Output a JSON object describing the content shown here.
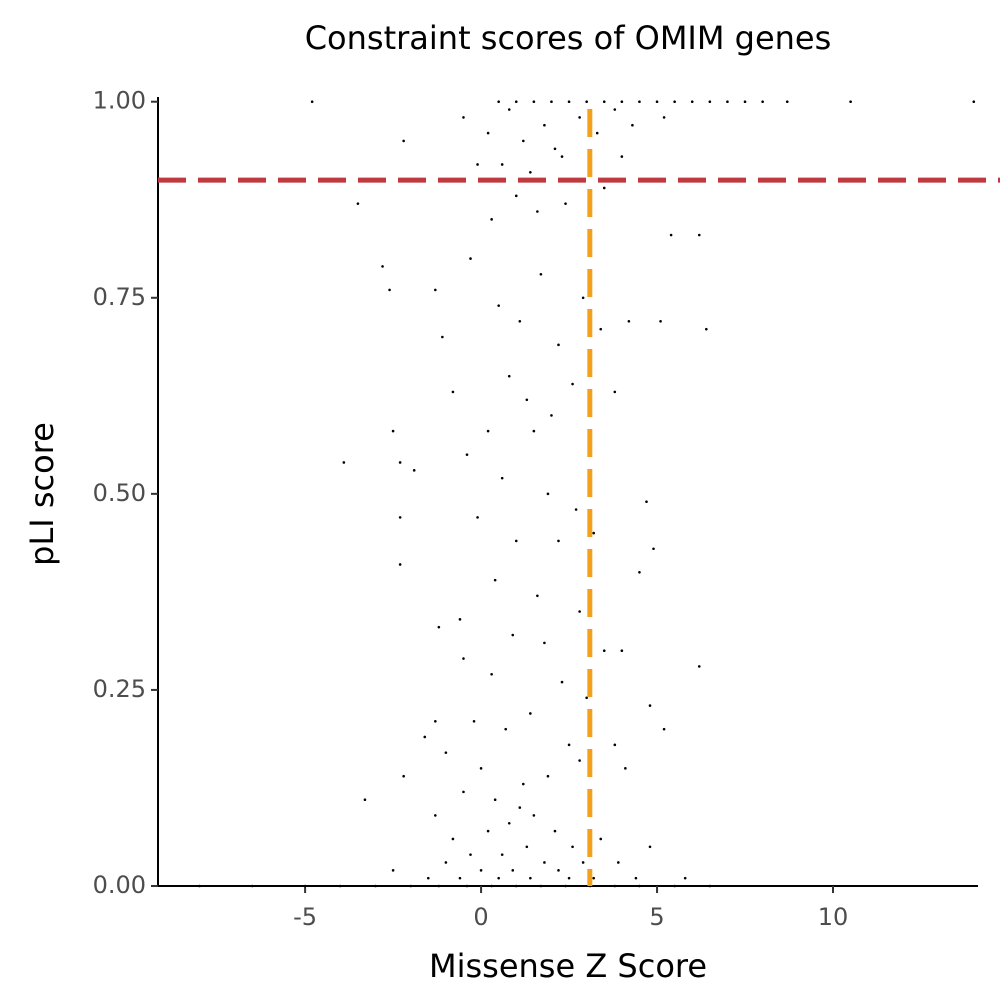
{
  "chart_data": {
    "type": "scatter",
    "title": "Constraint scores of OMIM genes",
    "x_label": "Missense Z Score",
    "y_label": "pLI score",
    "xlim": [
      -9.18,
      14.12
    ],
    "ylim": [
      0,
      1.006
    ],
    "xticks": [
      -5,
      0,
      5,
      10
    ],
    "yticks": [
      {
        "value": 0,
        "label": "0.00"
      },
      {
        "value": 0.25,
        "label": "0.25"
      },
      {
        "value": 0.5,
        "label": "0.50"
      },
      {
        "value": 0.75,
        "label": "0.75"
      },
      {
        "value": 1,
        "label": "1.00"
      }
    ],
    "point_color": "#000000",
    "reference_lines": [
      {
        "axis": "y",
        "value": 0.9,
        "color": "#c0393f"
      },
      {
        "axis": "x",
        "value": 3.09,
        "color": "#f5a01a"
      }
    ],
    "x": [
      -4.8,
      0.5,
      1.0,
      1.5,
      2.0,
      2.5,
      3.0,
      3.5,
      4.0,
      4.5,
      5.0,
      5.5,
      6.0,
      6.5,
      7.0,
      7.5,
      8.0,
      8.7,
      10.5,
      14.0,
      -0.5,
      0.2,
      0.8,
      1.2,
      1.8,
      2.3,
      2.8,
      3.3,
      3.8,
      4.3,
      0.6,
      1.4,
      2.1,
      2.6,
      4.0,
      5.2,
      -2.2,
      -0.1,
      1.0,
      1.6,
      2.4,
      3.5,
      5.4,
      6.2,
      -3.5,
      0.3,
      -2.8,
      -2.6,
      -1.3,
      -1.1,
      -0.3,
      0.5,
      1.1,
      1.7,
      2.2,
      2.9,
      3.4,
      4.2,
      5.1,
      6.4,
      0.8,
      1.3,
      2.0,
      2.6,
      3.8,
      -0.8,
      0.2,
      1.5,
      -2.5,
      -3.9,
      -2.3,
      -1.9,
      -0.4,
      0.6,
      1.9,
      2.7,
      3.2,
      4.7,
      -2.3,
      -0.1,
      1.0,
      2.2,
      4.9,
      -2.3,
      0.4,
      1.6,
      2.8,
      4.5,
      -1.2,
      -0.6,
      0.9,
      1.8,
      3.5,
      4.0,
      -0.5,
      0.3,
      2.3,
      6.2,
      3.0,
      4.8,
      -1.3,
      -1.6,
      -0.2,
      0.7,
      1.4,
      2.5,
      3.8,
      5.2,
      -2.2,
      -3.3,
      -1.0,
      0.0,
      1.2,
      1.9,
      2.8,
      4.1,
      -0.5,
      0.4,
      1.1,
      0.8,
      1.5,
      2.1,
      0.2,
      -0.8,
      -1.3,
      2.6,
      3.4,
      4.8,
      1.3,
      0.6,
      -0.3,
      -1.0,
      1.8,
      2.9,
      3.9,
      -2.5,
      0.0,
      0.9,
      2.2,
      -1.5,
      -0.6,
      0.5,
      1.4,
      2.5,
      3.2,
      4.4,
      5.8,
      -8.0,
      -6.5,
      -5.0,
      -4.0,
      -3.0,
      -2.0,
      -1.2,
      -0.4,
      0.3,
      1.0,
      1.7,
      2.4,
      3.1,
      3.8,
      4.5,
      5.5,
      6.5
    ],
    "y": [
      1,
      1,
      1,
      1,
      1,
      1,
      1,
      1,
      1,
      1,
      1,
      1,
      1,
      1,
      1,
      1,
      1,
      1,
      1,
      1,
      0.98,
      0.96,
      0.99,
      0.95,
      0.97,
      0.93,
      0.98,
      0.96,
      0.99,
      0.97,
      0.92,
      0.91,
      0.94,
      0.9,
      0.93,
      0.98,
      0.95,
      0.92,
      0.88,
      0.86,
      0.87,
      0.89,
      0.83,
      0.83,
      0.87,
      0.85,
      0.79,
      0.76,
      0.76,
      0.7,
      0.8,
      0.74,
      0.72,
      0.78,
      0.69,
      0.75,
      0.71,
      0.72,
      0.72,
      0.71,
      0.65,
      0.62,
      0.6,
      0.64,
      0.63,
      0.63,
      0.58,
      0.58,
      0.58,
      0.54,
      0.54,
      0.53,
      0.55,
      0.52,
      0.5,
      0.48,
      0.45,
      0.49,
      0.47,
      0.47,
      0.44,
      0.44,
      0.43,
      0.41,
      0.39,
      0.37,
      0.35,
      0.4,
      0.33,
      0.34,
      0.32,
      0.31,
      0.3,
      0.3,
      0.29,
      0.27,
      0.26,
      0.28,
      0.24,
      0.23,
      0.21,
      0.19,
      0.21,
      0.2,
      0.22,
      0.18,
      0.18,
      0.2,
      0.14,
      0.11,
      0.17,
      0.15,
      0.13,
      0.14,
      0.16,
      0.15,
      0.12,
      0.11,
      0.1,
      0.08,
      0.09,
      0.07,
      0.07,
      0.06,
      0.09,
      0.05,
      0.06,
      0.05,
      0.05,
      0.04,
      0.04,
      0.03,
      0.03,
      0.03,
      0.03,
      0.02,
      0.02,
      0.02,
      0.02,
      0.01,
      0.01,
      0.01,
      0.01,
      0.01,
      0.01,
      0.01,
      0.01,
      0,
      0,
      0,
      0,
      0,
      0,
      0,
      0,
      0,
      0,
      0,
      0,
      0,
      0,
      0,
      0,
      0
    ]
  }
}
